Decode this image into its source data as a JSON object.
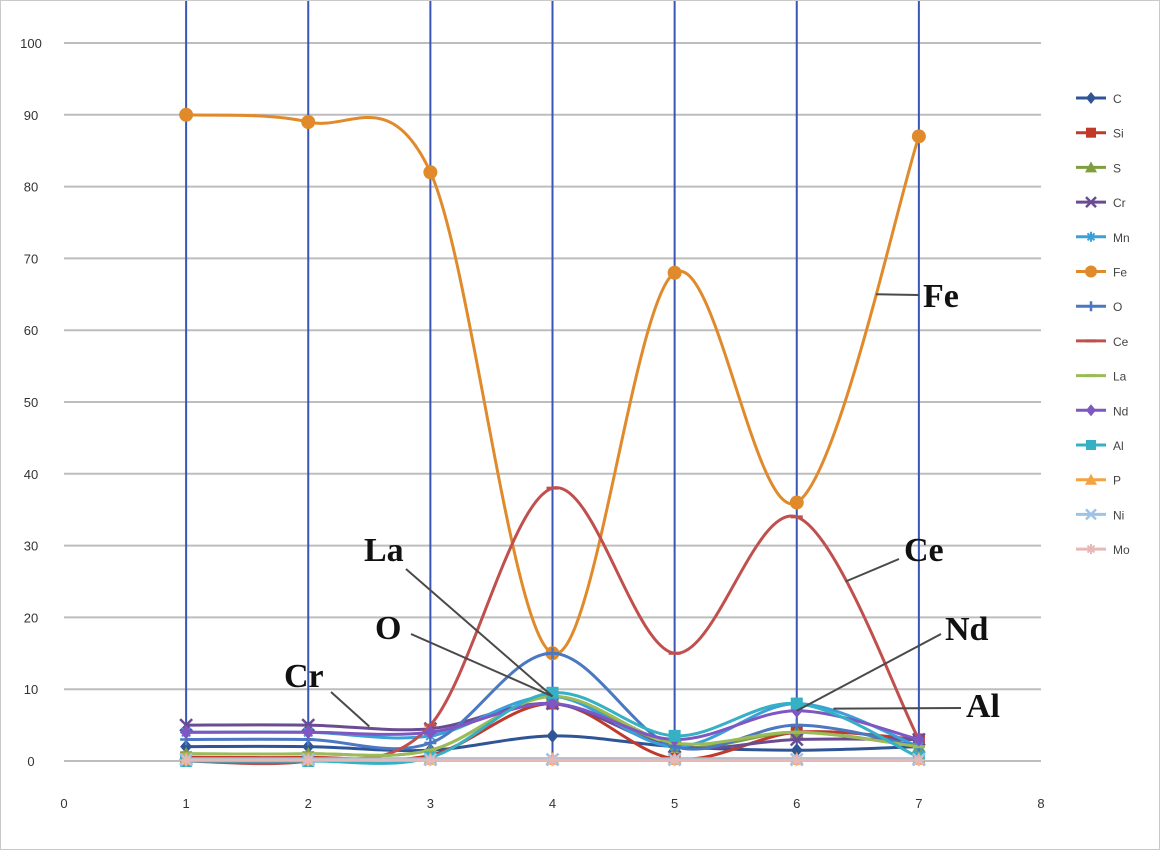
{
  "chart_data": {
    "type": "line",
    "xlim": [
      0,
      8
    ],
    "ylim": [
      0,
      100
    ],
    "x_ticks": [
      "0",
      "1",
      "2",
      "3",
      "4",
      "5",
      "6",
      "7",
      "8"
    ],
    "y_ticks": [
      "0",
      "10",
      "20",
      "30",
      "40",
      "50",
      "60",
      "70",
      "80",
      "90",
      "100"
    ],
    "grid": "horizontal",
    "vertical_lines_at": [
      1,
      2,
      3,
      4,
      5,
      6,
      7
    ],
    "vertical_line_color": "#3a55b4",
    "legend_placement": "right",
    "x": [
      1,
      2,
      3,
      4,
      5,
      6,
      7
    ],
    "series": [
      {
        "name": "C",
        "color": "#2f5597",
        "marker": "diamond",
        "values": [
          2,
          2,
          1.5,
          3.5,
          2,
          1.5,
          2
        ]
      },
      {
        "name": "Si",
        "color": "#c0392b",
        "marker": "square",
        "values": [
          0.5,
          0.5,
          0.8,
          8,
          0.3,
          4,
          3
        ]
      },
      {
        "name": "S",
        "color": "#7f9f3f",
        "marker": "triangle",
        "values": [
          1,
          1,
          1.5,
          9,
          2,
          4,
          2
        ]
      },
      {
        "name": "Cr",
        "color": "#6a4c93",
        "marker": "x",
        "values": [
          5,
          5,
          4.5,
          8,
          2,
          3,
          3
        ]
      },
      {
        "name": "Mn",
        "color": "#3aa0d8",
        "marker": "star",
        "values": [
          4,
          4,
          3.5,
          9,
          2,
          8,
          2
        ]
      },
      {
        "name": "Fe",
        "color": "#e08a2c",
        "marker": "circle",
        "values": [
          90,
          89,
          82,
          15,
          68,
          36,
          87
        ]
      },
      {
        "name": "O",
        "color": "#4a78c2",
        "marker": "plus",
        "values": [
          3,
          3,
          2.5,
          15,
          2,
          5,
          2
        ]
      },
      {
        "name": "Ce",
        "color": "#c0504d",
        "marker": "dash",
        "values": [
          0,
          0,
          5,
          38,
          15,
          34,
          3
        ]
      },
      {
        "name": "La",
        "color": "#9bbb59",
        "marker": "dash",
        "values": [
          1,
          1,
          1.5,
          9,
          2.5,
          4,
          2
        ]
      },
      {
        "name": "Nd",
        "color": "#7e57c2",
        "marker": "diamond",
        "values": [
          4,
          4,
          4,
          8,
          3,
          7,
          3
        ]
      },
      {
        "name": "Al",
        "color": "#35b0c4",
        "marker": "square",
        "values": [
          0,
          0,
          0.5,
          9.5,
          3.5,
          8,
          0.5
        ]
      },
      {
        "name": "P",
        "color": "#f4a340",
        "marker": "triangle",
        "values": [
          0.3,
          0.3,
          0.3,
          0.3,
          0.3,
          0.3,
          0.3
        ]
      },
      {
        "name": "Ni",
        "color": "#9dc3e6",
        "marker": "x",
        "values": [
          0.2,
          0.2,
          0.2,
          0.2,
          0.2,
          0.2,
          0.2
        ]
      },
      {
        "name": "Mo",
        "color": "#e6b8b7",
        "marker": "star",
        "values": [
          0.1,
          0.1,
          0.1,
          0.1,
          0.1,
          0.1,
          0.1
        ]
      }
    ],
    "annotations": [
      {
        "text": "Fe",
        "points_to": {
          "series": "Fe",
          "x": 6.65,
          "y": 65
        }
      },
      {
        "text": "La",
        "points_to": {
          "series": "La",
          "x": 4,
          "y": 9
        }
      },
      {
        "text": "O",
        "points_to": {
          "series": "O",
          "x": 4,
          "y": 9
        }
      },
      {
        "text": "Cr",
        "points_to": {
          "series": "Cr",
          "x": 2.5,
          "y": 4.8
        }
      },
      {
        "text": "Ce",
        "points_to": {
          "series": "Ce",
          "x": 6.4,
          "y": 25
        }
      },
      {
        "text": "Nd",
        "points_to": {
          "series": "Nd",
          "x": 6,
          "y": 7
        }
      },
      {
        "text": "Al",
        "points_to": {
          "series": "Al",
          "x": 6.3,
          "y": 7.3
        }
      }
    ]
  }
}
